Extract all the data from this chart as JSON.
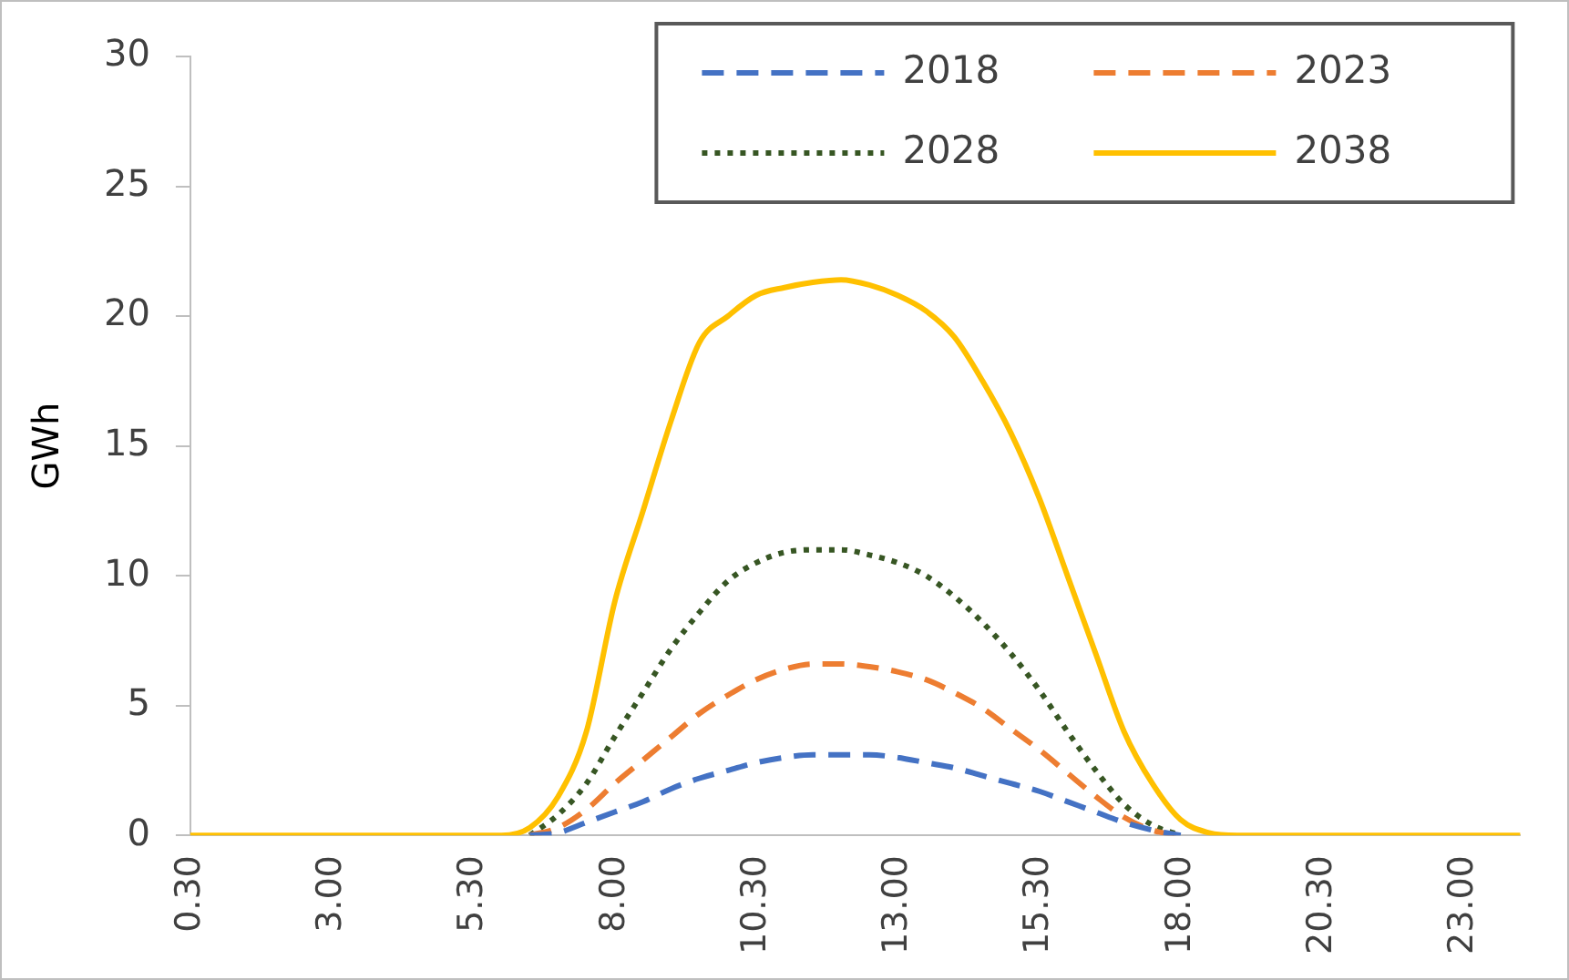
{
  "chart_data": {
    "type": "line",
    "ylabel": "GWh",
    "categories": [
      "0.30",
      null,
      null,
      null,
      null,
      "3.00",
      null,
      null,
      null,
      null,
      "5.30",
      null,
      null,
      null,
      null,
      "8.00",
      null,
      null,
      null,
      null,
      "10.30",
      null,
      null,
      null,
      null,
      "13.00",
      null,
      null,
      null,
      null,
      "15.30",
      null,
      null,
      null,
      null,
      "18.00",
      null,
      null,
      null,
      null,
      "20.30",
      null,
      null,
      null,
      null,
      "23.00",
      null,
      null
    ],
    "series": [
      {
        "name": "2018",
        "color": "#4472c4",
        "line_style": "dashed",
        "values": [
          null,
          null,
          null,
          null,
          null,
          null,
          null,
          null,
          null,
          null,
          null,
          null,
          0,
          0.1,
          0.5,
          0.9,
          1.3,
          1.8,
          2.2,
          2.5,
          2.8,
          3.0,
          3.1,
          3.1,
          3.1,
          3.0,
          2.8,
          2.6,
          2.3,
          2.0,
          1.7,
          1.3,
          0.9,
          0.5,
          0.2,
          0,
          null,
          null,
          null,
          null,
          null,
          null,
          null,
          null,
          null,
          null,
          null,
          null
        ]
      },
      {
        "name": "2023",
        "color": "#ed7d31",
        "line_style": "dashed",
        "values": [
          null,
          null,
          null,
          null,
          null,
          null,
          null,
          null,
          null,
          null,
          null,
          null,
          0,
          0.3,
          1.0,
          2.0,
          2.9,
          3.8,
          4.7,
          5.4,
          6.0,
          6.4,
          6.6,
          6.6,
          6.5,
          6.3,
          6.0,
          5.5,
          4.9,
          4.1,
          3.3,
          2.4,
          1.5,
          0.7,
          0.2,
          0,
          null,
          null,
          null,
          null,
          null,
          null,
          null,
          null,
          null,
          null,
          null,
          null
        ]
      },
      {
        "name": "2028",
        "color": "#375623",
        "line_style": "dotted",
        "values": [
          null,
          null,
          null,
          null,
          null,
          null,
          null,
          null,
          null,
          null,
          null,
          null,
          0,
          0.8,
          2.0,
          3.8,
          5.5,
          7.2,
          8.6,
          9.8,
          10.5,
          10.9,
          11.0,
          11.0,
          10.8,
          10.5,
          10.0,
          9.2,
          8.2,
          7.0,
          5.6,
          4.0,
          2.5,
          1.2,
          0.4,
          0,
          null,
          null,
          null,
          null,
          null,
          null,
          null,
          null,
          null,
          null,
          null,
          null
        ]
      },
      {
        "name": "2038",
        "color": "#ffc000",
        "line_style": "solid",
        "values": [
          0,
          0,
          0,
          0,
          0,
          0,
          0,
          0,
          0,
          0,
          0,
          0,
          0.3,
          1.5,
          4.0,
          9.0,
          12.5,
          16.0,
          19.0,
          20.0,
          20.8,
          21.1,
          21.3,
          21.4,
          21.2,
          20.8,
          20.2,
          19.2,
          17.5,
          15.5,
          13.0,
          10.0,
          7.0,
          4.0,
          2.0,
          0.6,
          0.1,
          0,
          0,
          0,
          0,
          0,
          0,
          0,
          0,
          0,
          0,
          0
        ]
      }
    ],
    "ylim": [
      0,
      30
    ],
    "yticks": [
      0,
      5,
      10,
      15,
      20,
      25,
      30
    ],
    "grid": false,
    "legend": "top right",
    "marker": "none"
  }
}
